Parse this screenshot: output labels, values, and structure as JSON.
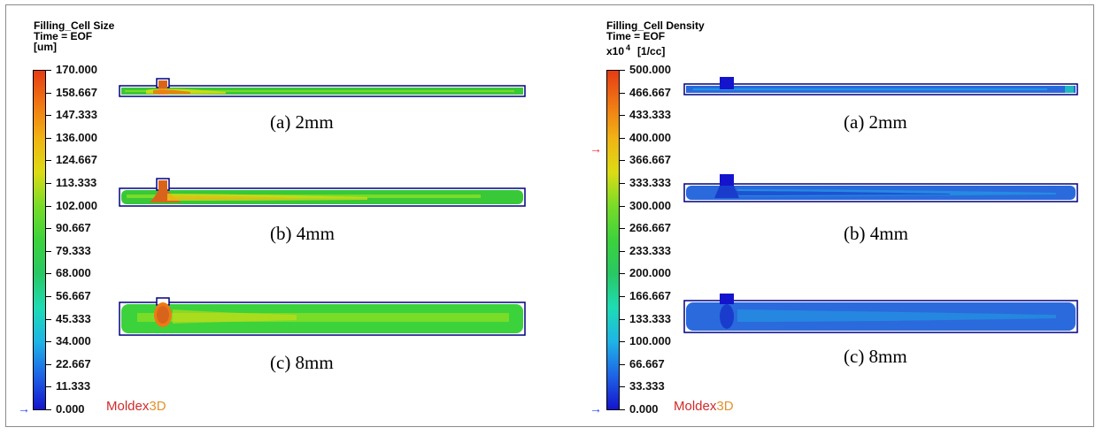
{
  "left": {
    "title": "Filling_Cell Size",
    "time": "Time = EOF",
    "unit": "[um]",
    "ticks": [
      "170.000",
      "158.667",
      "147.333",
      "136.000",
      "124.667",
      "113.333",
      "102.000",
      "90.667",
      "79.333",
      "68.000",
      "56.667",
      "45.333",
      "34.000",
      "22.667",
      "11.333",
      "0.000"
    ],
    "logo_main": "Moldex",
    "logo_suffix": "3D",
    "captions": [
      "(a) 2mm",
      "(b) 4mm",
      "(c) 8mm"
    ]
  },
  "right": {
    "title": "Filling_Cell Density",
    "time": "Time = EOF",
    "scale": "x10",
    "exponent": "4",
    "unit": "[1/cc]",
    "ticks": [
      "500.000",
      "466.667",
      "433.333",
      "400.000",
      "366.667",
      "333.333",
      "300.000",
      "266.667",
      "233.333",
      "200.000",
      "166.667",
      "133.333",
      "100.000",
      "66.667",
      "33.333",
      "0.000"
    ],
    "logo_main": "Moldex",
    "logo_suffix": "3D",
    "captions": [
      "(a) 2mm",
      "(b) 4mm",
      "(c) 8mm"
    ]
  },
  "colors": {
    "colormap": [
      "#1414cc",
      "#1e64e6",
      "#1eb4e6",
      "#1edcb4",
      "#28c864",
      "#3cd23c",
      "#78dc28",
      "#dcdc14",
      "#f0b414",
      "#f07814",
      "#e63c14"
    ],
    "size_fill": "#38c838",
    "size_hot": "#d8641c",
    "density_fill": "#2a6adc",
    "density_dark": "#1a3ccc",
    "outline": "#000080",
    "marker_blue": "#2040ff",
    "marker_red": "#ff2020"
  }
}
